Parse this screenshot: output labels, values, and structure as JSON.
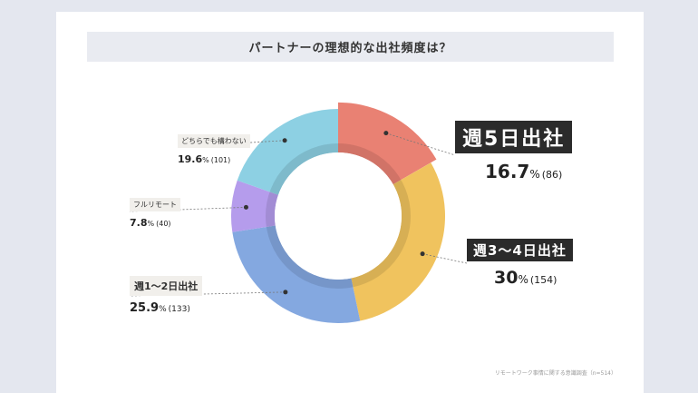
{
  "title": "パートナーの理想的な出社頻度は？",
  "source": "リモートワーク事情に関する意識調査（n=514）",
  "chart_data": {
    "type": "pie",
    "donut": true,
    "title": "パートナーの理想的な出社頻度は？",
    "n": 514,
    "slices": [
      {
        "label": "週5日出社",
        "percent": "16.7",
        "count": "(86)",
        "color": "#e98173"
      },
      {
        "label": "週3〜4日出社",
        "percent": "30",
        "count": "(154)",
        "color": "#f0c35e"
      },
      {
        "label": "週1〜2日出社",
        "percent": "25.9",
        "count": "(133)",
        "color": "#84a8e0"
      },
      {
        "label": "フルリモート",
        "percent": "7.8",
        "count": "(40)",
        "color": "#b59cec"
      },
      {
        "label": "どちらでも構わない",
        "percent": "19.6",
        "count": "(101)",
        "color": "#8dd0e3"
      }
    ],
    "unit": "%"
  }
}
